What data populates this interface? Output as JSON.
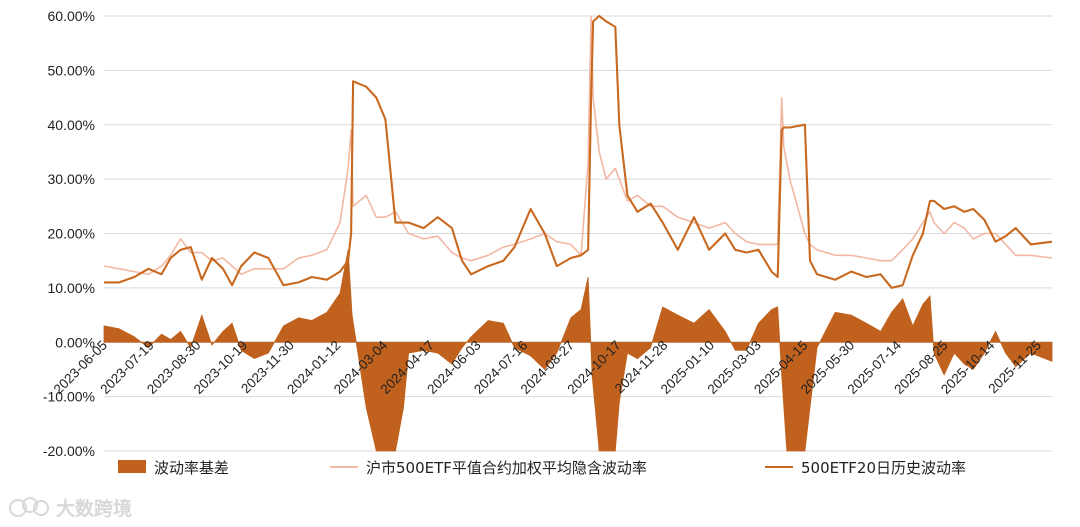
{
  "chart_data": {
    "type": "line",
    "subtype": "line + area",
    "ylim": [
      -0.2,
      0.6
    ],
    "y_ticks": [
      "-20.00%",
      "-10.00%",
      "0.00%",
      "10.00%",
      "20.00%",
      "30.00%",
      "40.00%",
      "50.00%",
      "60.00%"
    ],
    "x_tick_labels": [
      "2023-06-05",
      "2023-07-19",
      "2023-08-30",
      "2023-10-19",
      "2023-11-30",
      "2024-01-12",
      "2024-03-04",
      "2024-04-17",
      "2024-06-03",
      "2024-07-16",
      "2024-08-27",
      "2024-10-17",
      "2024-11-28",
      "2025-01-10",
      "2025-03-03",
      "2025-04-15",
      "2025-05-30",
      "2025-07-14",
      "2025-08-25",
      "2025-10-14",
      "2025-11-25"
    ],
    "x_range": [
      "2023-06-05",
      "2025-12-31"
    ],
    "grid": "horizontal",
    "legend_position": "bottom",
    "series": [
      {
        "name": "波动率基差",
        "kind": "area",
        "color": "#c0621e",
        "points": [
          [
            "2023-06-05",
            0.03
          ],
          [
            "2023-06-20",
            0.025
          ],
          [
            "2023-07-05",
            0.01
          ],
          [
            "2023-07-19",
            -0.01
          ],
          [
            "2023-08-01",
            0.015
          ],
          [
            "2023-08-10",
            0.005
          ],
          [
            "2023-08-20",
            0.02
          ],
          [
            "2023-08-30",
            -0.01
          ],
          [
            "2023-09-10",
            0.05
          ],
          [
            "2023-09-20",
            -0.005
          ],
          [
            "2023-10-01",
            0.02
          ],
          [
            "2023-10-10",
            0.035
          ],
          [
            "2023-10-19",
            -0.015
          ],
          [
            "2023-11-01",
            -0.03
          ],
          [
            "2023-11-15",
            -0.02
          ],
          [
            "2023-11-30",
            0.03
          ],
          [
            "2023-12-15",
            0.045
          ],
          [
            "2023-12-28",
            0.04
          ],
          [
            "2024-01-12",
            0.055
          ],
          [
            "2024-01-25",
            0.09
          ],
          [
            "2024-02-02",
            0.17
          ],
          [
            "2024-02-06",
            0.05
          ],
          [
            "2024-02-20",
            -0.12
          ],
          [
            "2024-03-01",
            -0.2
          ],
          [
            "2024-03-20",
            -0.2
          ],
          [
            "2024-03-28",
            -0.12
          ],
          [
            "2024-04-02",
            -0.02
          ],
          [
            "2024-04-17",
            -0.015
          ],
          [
            "2024-05-01",
            -0.02
          ],
          [
            "2024-05-15",
            -0.04
          ],
          [
            "2024-05-25",
            -0.01
          ],
          [
            "2024-06-03",
            0.01
          ],
          [
            "2024-06-20",
            0.04
          ],
          [
            "2024-07-05",
            0.035
          ],
          [
            "2024-07-16",
            -0.01
          ],
          [
            "2024-08-01",
            -0.025
          ],
          [
            "2024-08-15",
            -0.05
          ],
          [
            "2024-08-27",
            -0.02
          ],
          [
            "2024-09-10",
            0.045
          ],
          [
            "2024-09-20",
            0.06
          ],
          [
            "2024-09-27",
            0.12
          ],
          [
            "2024-10-01",
            -0.06
          ],
          [
            "2024-10-08",
            -0.2
          ],
          [
            "2024-10-24",
            -0.2
          ],
          [
            "2024-10-28",
            -0.11
          ],
          [
            "2024-11-05",
            -0.02
          ],
          [
            "2024-11-15",
            -0.03
          ],
          [
            "2024-11-28",
            -0.01
          ],
          [
            "2024-12-10",
            0.065
          ],
          [
            "2024-12-25",
            0.05
          ],
          [
            "2025-01-10",
            0.035
          ],
          [
            "2025-01-25",
            0.06
          ],
          [
            "2025-02-10",
            0.02
          ],
          [
            "2025-02-20",
            -0.015
          ],
          [
            "2025-03-03",
            -0.015
          ],
          [
            "2025-03-15",
            0.035
          ],
          [
            "2025-03-28",
            0.06
          ],
          [
            "2025-04-03",
            0.065
          ],
          [
            "2025-04-07",
            -0.06
          ],
          [
            "2025-04-12",
            -0.2
          ],
          [
            "2025-04-30",
            -0.2
          ],
          [
            "2025-05-05",
            -0.12
          ],
          [
            "2025-05-12",
            -0.01
          ],
          [
            "2025-05-30",
            0.055
          ],
          [
            "2025-06-15",
            0.05
          ],
          [
            "2025-06-30",
            0.035
          ],
          [
            "2025-07-14",
            0.02
          ],
          [
            "2025-07-25",
            0.055
          ],
          [
            "2025-08-05",
            0.08
          ],
          [
            "2025-08-15",
            0.03
          ],
          [
            "2025-08-25",
            0.07
          ],
          [
            "2025-09-01",
            0.085
          ],
          [
            "2025-09-05",
            -0.02
          ],
          [
            "2025-09-15",
            -0.06
          ],
          [
            "2025-09-25",
            -0.02
          ],
          [
            "2025-10-05",
            -0.04
          ],
          [
            "2025-10-14",
            -0.05
          ],
          [
            "2025-10-25",
            -0.02
          ],
          [
            "2025-11-05",
            0.02
          ],
          [
            "2025-11-15",
            -0.02
          ],
          [
            "2025-11-25",
            -0.045
          ],
          [
            "2025-12-10",
            -0.02
          ],
          [
            "2025-12-31",
            -0.035
          ]
        ]
      },
      {
        "name": "沪市500ETF平值合约加权平均隐含波动率",
        "kind": "line",
        "color": "#f2b8a4",
        "points": [
          [
            "2023-06-05",
            0.14
          ],
          [
            "2023-06-20",
            0.135
          ],
          [
            "2023-07-05",
            0.13
          ],
          [
            "2023-07-19",
            0.125
          ],
          [
            "2023-08-01",
            0.14
          ],
          [
            "2023-08-10",
            0.16
          ],
          [
            "2023-08-20",
            0.19
          ],
          [
            "2023-08-30",
            0.165
          ],
          [
            "2023-09-10",
            0.165
          ],
          [
            "2023-09-20",
            0.15
          ],
          [
            "2023-10-01",
            0.155
          ],
          [
            "2023-10-10",
            0.14
          ],
          [
            "2023-10-19",
            0.125
          ],
          [
            "2023-11-01",
            0.135
          ],
          [
            "2023-11-15",
            0.135
          ],
          [
            "2023-11-30",
            0.135
          ],
          [
            "2023-12-15",
            0.155
          ],
          [
            "2023-12-28",
            0.16
          ],
          [
            "2024-01-12",
            0.17
          ],
          [
            "2024-01-25",
            0.22
          ],
          [
            "2024-02-02",
            0.32
          ],
          [
            "2024-02-05",
            0.39
          ],
          [
            "2024-02-07",
            0.25
          ],
          [
            "2024-02-20",
            0.27
          ],
          [
            "2024-03-01",
            0.23
          ],
          [
            "2024-03-10",
            0.23
          ],
          [
            "2024-03-20",
            0.24
          ],
          [
            "2024-04-02",
            0.2
          ],
          [
            "2024-04-17",
            0.19
          ],
          [
            "2024-05-01",
            0.195
          ],
          [
            "2024-05-15",
            0.165
          ],
          [
            "2024-05-25",
            0.155
          ],
          [
            "2024-06-03",
            0.15
          ],
          [
            "2024-06-20",
            0.16
          ],
          [
            "2024-07-05",
            0.175
          ],
          [
            "2024-07-16",
            0.18
          ],
          [
            "2024-08-01",
            0.19
          ],
          [
            "2024-08-15",
            0.2
          ],
          [
            "2024-08-27",
            0.185
          ],
          [
            "2024-09-10",
            0.18
          ],
          [
            "2024-09-20",
            0.16
          ],
          [
            "2024-09-27",
            0.33
          ],
          [
            "2024-09-30",
            0.6
          ],
          [
            "2024-10-02",
            0.45
          ],
          [
            "2024-10-08",
            0.35
          ],
          [
            "2024-10-15",
            0.3
          ],
          [
            "2024-10-24",
            0.32
          ],
          [
            "2024-10-28",
            0.3
          ],
          [
            "2024-11-05",
            0.26
          ],
          [
            "2024-11-15",
            0.27
          ],
          [
            "2024-11-28",
            0.25
          ],
          [
            "2024-12-10",
            0.25
          ],
          [
            "2024-12-25",
            0.23
          ],
          [
            "2025-01-10",
            0.22
          ],
          [
            "2025-01-25",
            0.21
          ],
          [
            "2025-02-10",
            0.22
          ],
          [
            "2025-02-20",
            0.2
          ],
          [
            "2025-03-03",
            0.185
          ],
          [
            "2025-03-15",
            0.18
          ],
          [
            "2025-03-28",
            0.18
          ],
          [
            "2025-04-03",
            0.18
          ],
          [
            "2025-04-07",
            0.45
          ],
          [
            "2025-04-09",
            0.36
          ],
          [
            "2025-04-15",
            0.3
          ],
          [
            "2025-04-30",
            0.2
          ],
          [
            "2025-05-05",
            0.18
          ],
          [
            "2025-05-12",
            0.17
          ],
          [
            "2025-05-30",
            0.16
          ],
          [
            "2025-06-15",
            0.16
          ],
          [
            "2025-06-30",
            0.155
          ],
          [
            "2025-07-14",
            0.15
          ],
          [
            "2025-07-25",
            0.15
          ],
          [
            "2025-08-05",
            0.17
          ],
          [
            "2025-08-15",
            0.19
          ],
          [
            "2025-08-25",
            0.22
          ],
          [
            "2025-09-01",
            0.24
          ],
          [
            "2025-09-05",
            0.22
          ],
          [
            "2025-09-15",
            0.2
          ],
          [
            "2025-09-25",
            0.22
          ],
          [
            "2025-10-05",
            0.21
          ],
          [
            "2025-10-14",
            0.19
          ],
          [
            "2025-10-25",
            0.2
          ],
          [
            "2025-11-05",
            0.2
          ],
          [
            "2025-11-15",
            0.18
          ],
          [
            "2025-11-25",
            0.16
          ],
          [
            "2025-12-10",
            0.16
          ],
          [
            "2025-12-31",
            0.155
          ]
        ]
      },
      {
        "name": "500ETF20日历史波动率",
        "kind": "line",
        "color": "#c9691f",
        "points": [
          [
            "2023-06-05",
            0.11
          ],
          [
            "2023-06-20",
            0.11
          ],
          [
            "2023-07-05",
            0.12
          ],
          [
            "2023-07-19",
            0.135
          ],
          [
            "2023-08-01",
            0.125
          ],
          [
            "2023-08-10",
            0.155
          ],
          [
            "2023-08-20",
            0.17
          ],
          [
            "2023-08-30",
            0.175
          ],
          [
            "2023-09-10",
            0.115
          ],
          [
            "2023-09-20",
            0.155
          ],
          [
            "2023-10-01",
            0.135
          ],
          [
            "2023-10-10",
            0.105
          ],
          [
            "2023-10-19",
            0.14
          ],
          [
            "2023-11-01",
            0.165
          ],
          [
            "2023-11-15",
            0.155
          ],
          [
            "2023-11-30",
            0.105
          ],
          [
            "2023-12-15",
            0.11
          ],
          [
            "2023-12-28",
            0.12
          ],
          [
            "2024-01-12",
            0.115
          ],
          [
            "2024-01-25",
            0.13
          ],
          [
            "2024-02-02",
            0.15
          ],
          [
            "2024-02-05",
            0.2
          ],
          [
            "2024-02-07",
            0.48
          ],
          [
            "2024-02-20",
            0.47
          ],
          [
            "2024-03-01",
            0.45
          ],
          [
            "2024-03-10",
            0.41
          ],
          [
            "2024-03-20",
            0.22
          ],
          [
            "2024-04-02",
            0.22
          ],
          [
            "2024-04-17",
            0.21
          ],
          [
            "2024-05-01",
            0.23
          ],
          [
            "2024-05-15",
            0.21
          ],
          [
            "2024-05-25",
            0.15
          ],
          [
            "2024-06-03",
            0.125
          ],
          [
            "2024-06-20",
            0.14
          ],
          [
            "2024-07-05",
            0.15
          ],
          [
            "2024-07-16",
            0.175
          ],
          [
            "2024-08-01",
            0.245
          ],
          [
            "2024-08-15",
            0.2
          ],
          [
            "2024-08-27",
            0.14
          ],
          [
            "2024-09-10",
            0.155
          ],
          [
            "2024-09-20",
            0.16
          ],
          [
            "2024-09-27",
            0.17
          ],
          [
            "2024-09-30",
            0.45
          ],
          [
            "2024-10-02",
            0.59
          ],
          [
            "2024-10-08",
            0.6
          ],
          [
            "2024-10-15",
            0.59
          ],
          [
            "2024-10-24",
            0.58
          ],
          [
            "2024-10-28",
            0.4
          ],
          [
            "2024-11-05",
            0.27
          ],
          [
            "2024-11-15",
            0.24
          ],
          [
            "2024-11-28",
            0.255
          ],
          [
            "2024-12-10",
            0.22
          ],
          [
            "2024-12-25",
            0.17
          ],
          [
            "2025-01-10",
            0.23
          ],
          [
            "2025-01-25",
            0.17
          ],
          [
            "2025-02-10",
            0.2
          ],
          [
            "2025-02-20",
            0.17
          ],
          [
            "2025-03-03",
            0.165
          ],
          [
            "2025-03-15",
            0.17
          ],
          [
            "2025-03-28",
            0.13
          ],
          [
            "2025-04-03",
            0.12
          ],
          [
            "2025-04-07",
            0.39
          ],
          [
            "2025-04-09",
            0.395
          ],
          [
            "2025-04-15",
            0.395
          ],
          [
            "2025-04-30",
            0.4
          ],
          [
            "2025-05-05",
            0.15
          ],
          [
            "2025-05-12",
            0.125
          ],
          [
            "2025-05-30",
            0.115
          ],
          [
            "2025-06-15",
            0.13
          ],
          [
            "2025-06-30",
            0.12
          ],
          [
            "2025-07-14",
            0.125
          ],
          [
            "2025-07-25",
            0.1
          ],
          [
            "2025-08-05",
            0.105
          ],
          [
            "2025-08-15",
            0.16
          ],
          [
            "2025-08-25",
            0.2
          ],
          [
            "2025-09-01",
            0.26
          ],
          [
            "2025-09-05",
            0.26
          ],
          [
            "2025-09-15",
            0.245
          ],
          [
            "2025-09-25",
            0.25
          ],
          [
            "2025-10-05",
            0.24
          ],
          [
            "2025-10-14",
            0.245
          ],
          [
            "2025-10-25",
            0.225
          ],
          [
            "2025-11-05",
            0.185
          ],
          [
            "2025-11-15",
            0.195
          ],
          [
            "2025-11-25",
            0.21
          ],
          [
            "2025-12-10",
            0.18
          ],
          [
            "2025-12-31",
            0.185
          ]
        ]
      }
    ]
  },
  "watermark": {
    "text": "大数跨境",
    "icon": "brand-logo-icon"
  }
}
